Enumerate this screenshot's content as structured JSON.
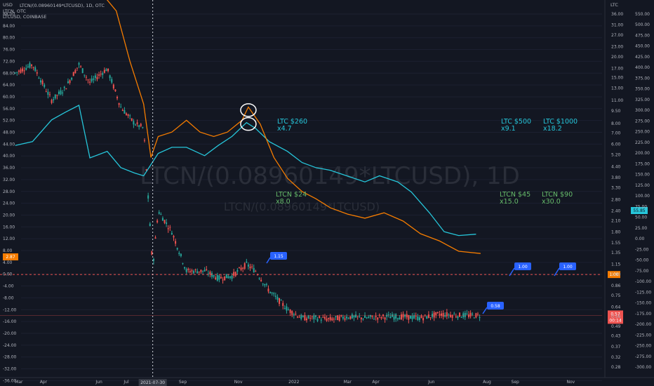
{
  "header": {
    "currency_label": "USD",
    "right_axis_currency": "LTC",
    "legend_lines": [
      "LTCN/(0.08960149*LTCUSD), 1D, OTC",
      "LTCN, OTC",
      "LTCUSD, COINBASE"
    ]
  },
  "watermark": {
    "main": "LTCN/(0.08960149*LTCUSD), 1D",
    "secondary": "LTCN/(0.08960149*LTCUSD)"
  },
  "annotations": {
    "ltc_260": {
      "line1": "LTC $260",
      "line2": "x4.7"
    },
    "ltc_500": {
      "line1": "LTC $500",
      "line2": "x9.1"
    },
    "ltc_1000": {
      "line1": "LTC $1000",
      "line2": "x18.2"
    },
    "ltcn_24": {
      "line1": "LTCN $24",
      "line2": "x8.0"
    },
    "ltcn_45": {
      "line1": "LTCN $45",
      "line2": "x15.0"
    },
    "ltcn_90": {
      "line1": "LTCN $90",
      "line2": "x30.0"
    }
  },
  "callouts": [
    "1.15",
    "1.00",
    "1.00",
    "0.58"
  ],
  "price_tags": {
    "left_orange": "2.87",
    "ltc_right": "55.85",
    "ratio_one": "1.00",
    "ratio_current": "0.57",
    "ratio_timer": "00:14"
  },
  "x_axis": {
    "ticks": [
      "Mar",
      "Apr",
      "Jun",
      "Jul",
      "Sep",
      "Nov",
      "2022",
      "Mar",
      "Apr",
      "Jun",
      "Aug",
      "Sep",
      "Nov"
    ],
    "crosshair_date": "2021-07-30"
  },
  "colors": {
    "background": "#131722",
    "ltc_line": "#26c6da",
    "ltcn_line": "#f57c00",
    "candle_up": "#26a69a",
    "candle_down": "#ef5350",
    "callout": "#2962ff",
    "axis_text": "#b2b5be"
  },
  "chart_data": {
    "type": "line",
    "title": "LTCN/(0.08960149*LTCUSD), 1D, OTC",
    "log_scale": true,
    "axes": {
      "left_usd_ticks": [
        "88.00",
        "84.00",
        "80.00",
        "76.00",
        "72.00",
        "68.00",
        "64.00",
        "60.00",
        "56.00",
        "52.00",
        "48.00",
        "44.00",
        "40.00",
        "36.00",
        "32.00",
        "28.00",
        "24.00",
        "20.00",
        "16.00",
        "12.00",
        "8.00",
        "4.00",
        "0.00",
        "-4.00",
        "-8.00",
        "-12.00",
        "-16.00",
        "-20.00",
        "-24.00",
        "-28.00",
        "-32.00",
        "-36.00"
      ],
      "ratio_ticks": [
        "36.00",
        "31.00",
        "27.00",
        "23.00",
        "20.00",
        "17.00",
        "15.00",
        "13.00",
        "11.00",
        "9.50",
        "8.00",
        "7.00",
        "6.00",
        "5.20",
        "4.40",
        "3.80",
        "3.30",
        "2.80",
        "2.40",
        "2.10",
        "1.80",
        "1.55",
        "1.35",
        "1.15",
        "1.00",
        "0.86",
        "0.75",
        "0.64",
        "0.56",
        "0.49",
        "0.43",
        "0.37",
        "0.32",
        "0.28"
      ],
      "ltc_usd_ticks": [
        "550.00",
        "500.00",
        "475.00",
        "450.00",
        "425.00",
        "400.00",
        "375.00",
        "350.00",
        "325.00",
        "300.00",
        "275.00",
        "250.00",
        "225.00",
        "200.00",
        "175.00",
        "150.00",
        "125.00",
        "100.00",
        "75.00",
        "50.00",
        "25.00",
        "0.00",
        "-25.00",
        "-50.00",
        "-75.00",
        "-100.00",
        "-125.00",
        "-150.00",
        "-175.00",
        "-200.00",
        "-225.00",
        "-250.00",
        "-275.00",
        "-300.00"
      ],
      "x_range": [
        "2021-03",
        "2022-11"
      ]
    },
    "series": [
      {
        "name": "LTCUSD, COINBASE",
        "x": [
          "2021-03-01",
          "2021-03-20",
          "2021-04-10",
          "2021-04-25",
          "2021-05-10",
          "2021-05-22",
          "2021-06-10",
          "2021-06-25",
          "2021-07-10",
          "2021-07-20",
          "2021-08-05",
          "2021-08-20",
          "2021-09-05",
          "2021-09-25",
          "2021-10-10",
          "2021-10-25",
          "2021-11-10",
          "2021-11-20",
          "2021-12-05",
          "2021-12-25",
          "2022-01-10",
          "2022-01-25",
          "2022-02-10",
          "2022-02-28",
          "2022-03-20",
          "2022-04-05",
          "2022-04-25",
          "2022-05-10",
          "2022-05-30",
          "2022-06-15",
          "2022-07-01",
          "2022-07-20"
        ],
        "values": [
          190,
          200,
          270,
          300,
          330,
          160,
          175,
          140,
          130,
          125,
          170,
          185,
          185,
          165,
          190,
          215,
          260,
          240,
          200,
          175,
          150,
          140,
          135,
          125,
          115,
          125,
          115,
          100,
          75,
          58,
          55,
          56
        ]
      },
      {
        "name": "LTCN, OTC",
        "x": [
          "2021-06-01",
          "2021-06-20",
          "2021-07-05",
          "2021-07-20",
          "2021-07-28",
          "2021-08-05",
          "2021-08-20",
          "2021-09-05",
          "2021-09-20",
          "2021-10-05",
          "2021-10-20",
          "2021-11-05",
          "2021-11-12",
          "2021-11-25",
          "2021-12-10",
          "2021-12-25",
          "2022-01-10",
          "2022-01-25",
          "2022-02-10",
          "2022-03-01",
          "2022-03-20",
          "2022-04-10",
          "2022-05-01",
          "2022-05-20",
          "2022-06-10",
          "2022-07-01",
          "2022-07-25"
        ],
        "values": [
          120,
          90,
          45,
          25,
          12,
          16,
          17,
          20,
          17,
          16,
          17,
          20,
          24,
          19,
          12,
          9,
          7.5,
          6.8,
          6.0,
          5.5,
          5.2,
          5.6,
          5.0,
          4.2,
          3.8,
          3.3,
          3.2
        ]
      },
      {
        "name": "LTCN/(0.08960149*LTCUSD), 1D, OTC",
        "x": [
          "2021-03-01",
          "2021-03-20",
          "2021-04-10",
          "2021-04-25",
          "2021-05-10",
          "2021-05-22",
          "2021-06-10",
          "2021-06-25",
          "2021-07-10",
          "2021-07-20",
          "2021-07-30",
          "2021-08-05",
          "2021-08-20",
          "2021-09-05",
          "2021-09-25",
          "2021-10-10",
          "2021-10-25",
          "2021-11-10",
          "2021-11-20",
          "2021-12-05",
          "2021-12-25",
          "2022-01-10",
          "2022-01-25",
          "2022-02-10",
          "2022-03-01",
          "2022-03-20",
          "2022-04-10",
          "2022-05-01",
          "2022-05-20",
          "2022-06-10",
          "2022-07-01",
          "2022-07-25"
        ],
        "values": [
          16,
          18,
          11,
          13,
          18,
          14,
          17,
          10,
          8,
          7.5,
          1.1,
          2.4,
          1.8,
          1.05,
          1.05,
          0.95,
          0.98,
          1.15,
          1.05,
          0.8,
          0.62,
          0.55,
          0.55,
          0.54,
          0.56,
          0.55,
          0.56,
          0.56,
          0.55,
          0.58,
          0.57,
          0.57
        ]
      }
    ]
  }
}
